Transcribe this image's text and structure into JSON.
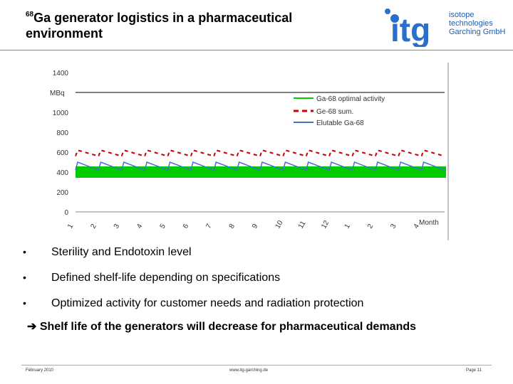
{
  "title": {
    "sup": "68",
    "rest": "Ga generator logistics in a pharmaceutical environment"
  },
  "logo": {
    "mark": "itg",
    "line1": "isotope",
    "line2": "technologies",
    "line3": "Garching GmbH"
  },
  "chart_data": {
    "type": "line",
    "ylabel": "MBq",
    "xlabel": "Month",
    "ylim": [
      0,
      1400
    ],
    "yticks": [
      0,
      200,
      400,
      600,
      800,
      1000,
      1400
    ],
    "x": [
      "1",
      "2",
      "3",
      "4",
      "5",
      "6",
      "7",
      "8",
      "9",
      "10",
      "11",
      "12",
      "1",
      "2",
      "3",
      "4"
    ],
    "series": [
      {
        "name": "Ga-68 optimal activity",
        "color": "#00cc00",
        "value": 400
      },
      {
        "name": "Ge-68 sum.",
        "color": "#cc0000",
        "start": 620,
        "end": 560
      },
      {
        "name": "Elutable Ga-68",
        "color": "#4472c4",
        "start": 500,
        "end": 420
      }
    ],
    "legend_position": "top-right"
  },
  "bullets": [
    "Sterility and Endotoxin level",
    "Defined shelf-life depending on specifications",
    "Optimized activity for customer needs and radiation protection"
  ],
  "bullet_mark": "•",
  "conclusion": "Shelf life of the generators will decrease for pharmaceutical demands",
  "footer": {
    "date": "February 2010",
    "url": "www.itg-garching.de",
    "page": "Page 11"
  }
}
